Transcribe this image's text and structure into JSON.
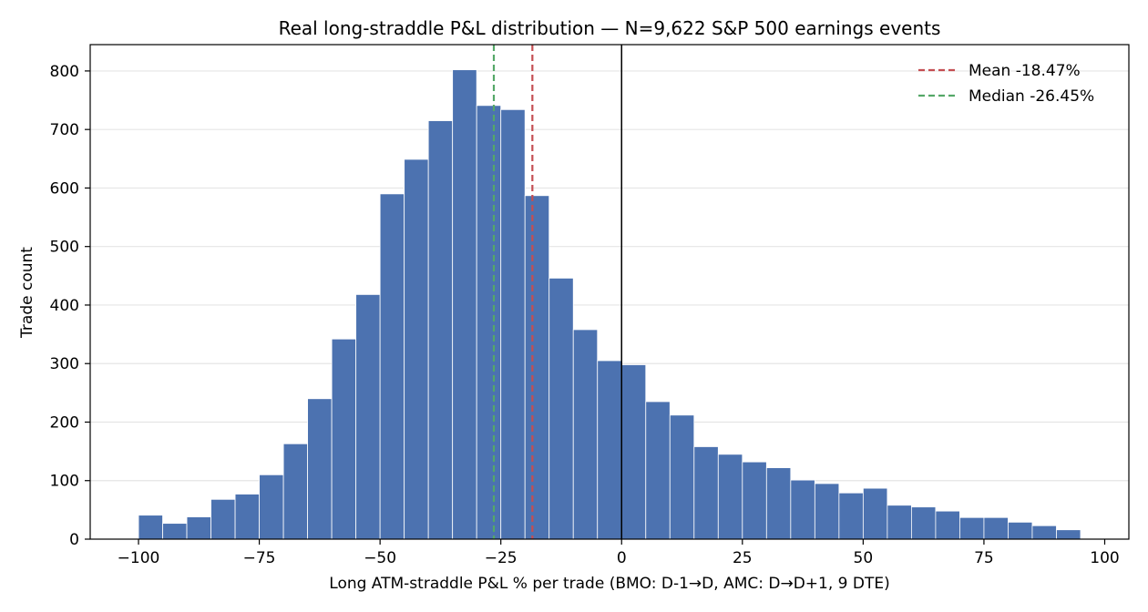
{
  "chart_data": {
    "type": "bar",
    "title": "Real long-straddle P&L distribution — N=9,622 S&P 500 earnings events",
    "xlabel": "Long ATM-straddle P&L % per trade (BMO: D-1→D, AMC: D→D+1, 9 DTE)",
    "ylabel": "Trade count",
    "xlim": [
      -110,
      105
    ],
    "ylim": [
      0,
      845
    ],
    "bin_width": 5,
    "bins_start": [
      -100,
      -95,
      -90,
      -85,
      -80,
      -75,
      -70,
      -65,
      -60,
      -55,
      -50,
      -45,
      -40,
      -35,
      -30,
      -25,
      -20,
      -15,
      -10,
      -5,
      0,
      5,
      10,
      15,
      20,
      25,
      30,
      35,
      40,
      45,
      50,
      55,
      60,
      65,
      70,
      75,
      80,
      85,
      90
    ],
    "values": [
      41,
      27,
      38,
      68,
      77,
      110,
      163,
      240,
      342,
      418,
      590,
      649,
      715,
      802,
      741,
      734,
      587,
      446,
      358,
      305,
      298,
      235,
      212,
      158,
      145,
      132,
      122,
      101,
      95,
      79,
      87,
      58,
      55,
      48,
      37,
      37,
      29,
      23,
      16
    ],
    "xticks": [
      -100,
      -75,
      -50,
      -25,
      0,
      25,
      50,
      75,
      100
    ],
    "xtick_labels": [
      "−100",
      "−75",
      "−50",
      "−25",
      "0",
      "25",
      "50",
      "75",
      "100"
    ],
    "yticks": [
      0,
      100,
      200,
      300,
      400,
      500,
      600,
      700,
      800
    ],
    "ytick_labels": [
      "0",
      "100",
      "200",
      "300",
      "400",
      "500",
      "600",
      "700",
      "800"
    ],
    "grid": "horizontal",
    "legend_position": "top-right",
    "reference_lines": [
      {
        "x": -18.47,
        "label": "Mean -18.47%",
        "color": "#c44e52",
        "style": "dashed"
      },
      {
        "x": -26.45,
        "label": "Median -26.45%",
        "color": "#55a868",
        "style": "dashed"
      },
      {
        "x": 0,
        "label": "",
        "color": "#000000",
        "style": "solid"
      }
    ],
    "bar_color": "#4c72b0"
  }
}
